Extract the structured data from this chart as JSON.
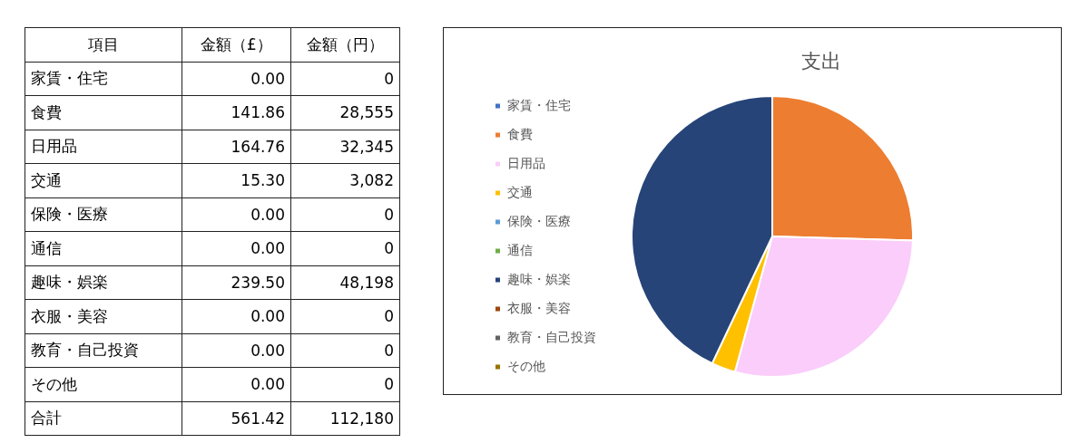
{
  "chart_data": [
    {
      "type": "other",
      "xlabel": "項目",
      "categories": [
        "家賃・住宅",
        "食費",
        "日用品",
        "交通",
        "保険・医療",
        "通信",
        "趣味・娯楽",
        "衣服・美容",
        "教育・自己投資",
        "その他",
        "合計"
      ],
      "series": [
        {
          "name": "金額（£）",
          "values": [
            0,
            141.86,
            164.76,
            15.3,
            0,
            0,
            239.5,
            0,
            0,
            0,
            561.42
          ],
          "value_labels": [
            "0.00",
            "141.86",
            "164.76",
            "15.30",
            "0.00",
            "0.00",
            "239.50",
            "0.00",
            "0.00",
            "0.00",
            "561.42"
          ]
        },
        {
          "name": "金額（円）",
          "values": [
            0,
            28555,
            32345,
            3082,
            0,
            0,
            48198,
            0,
            0,
            0,
            112180
          ],
          "value_labels": [
            "0",
            "28,555",
            "32,345",
            "3,082",
            "0",
            "0",
            "48,198",
            "0",
            "0",
            "0",
            "112,180"
          ]
        }
      ]
    },
    {
      "type": "pie",
      "title": "支出",
      "categories": [
        "家賃・住宅",
        "食費",
        "日用品",
        "交通",
        "保険・医療",
        "通信",
        "趣味・娯楽",
        "衣服・美容",
        "教育・自己投資",
        "その他"
      ],
      "values": [
        0,
        25.45,
        28.83,
        2.75,
        0,
        0,
        42.97,
        0,
        0,
        0
      ],
      "colors": [
        "#4472c4",
        "#ed7d31",
        "#facdfa",
        "#ffc000",
        "#5b9bd5",
        "#70ad47",
        "#264478",
        "#9e480e",
        "#636363",
        "#997300"
      ],
      "legend": "left"
    }
  ]
}
